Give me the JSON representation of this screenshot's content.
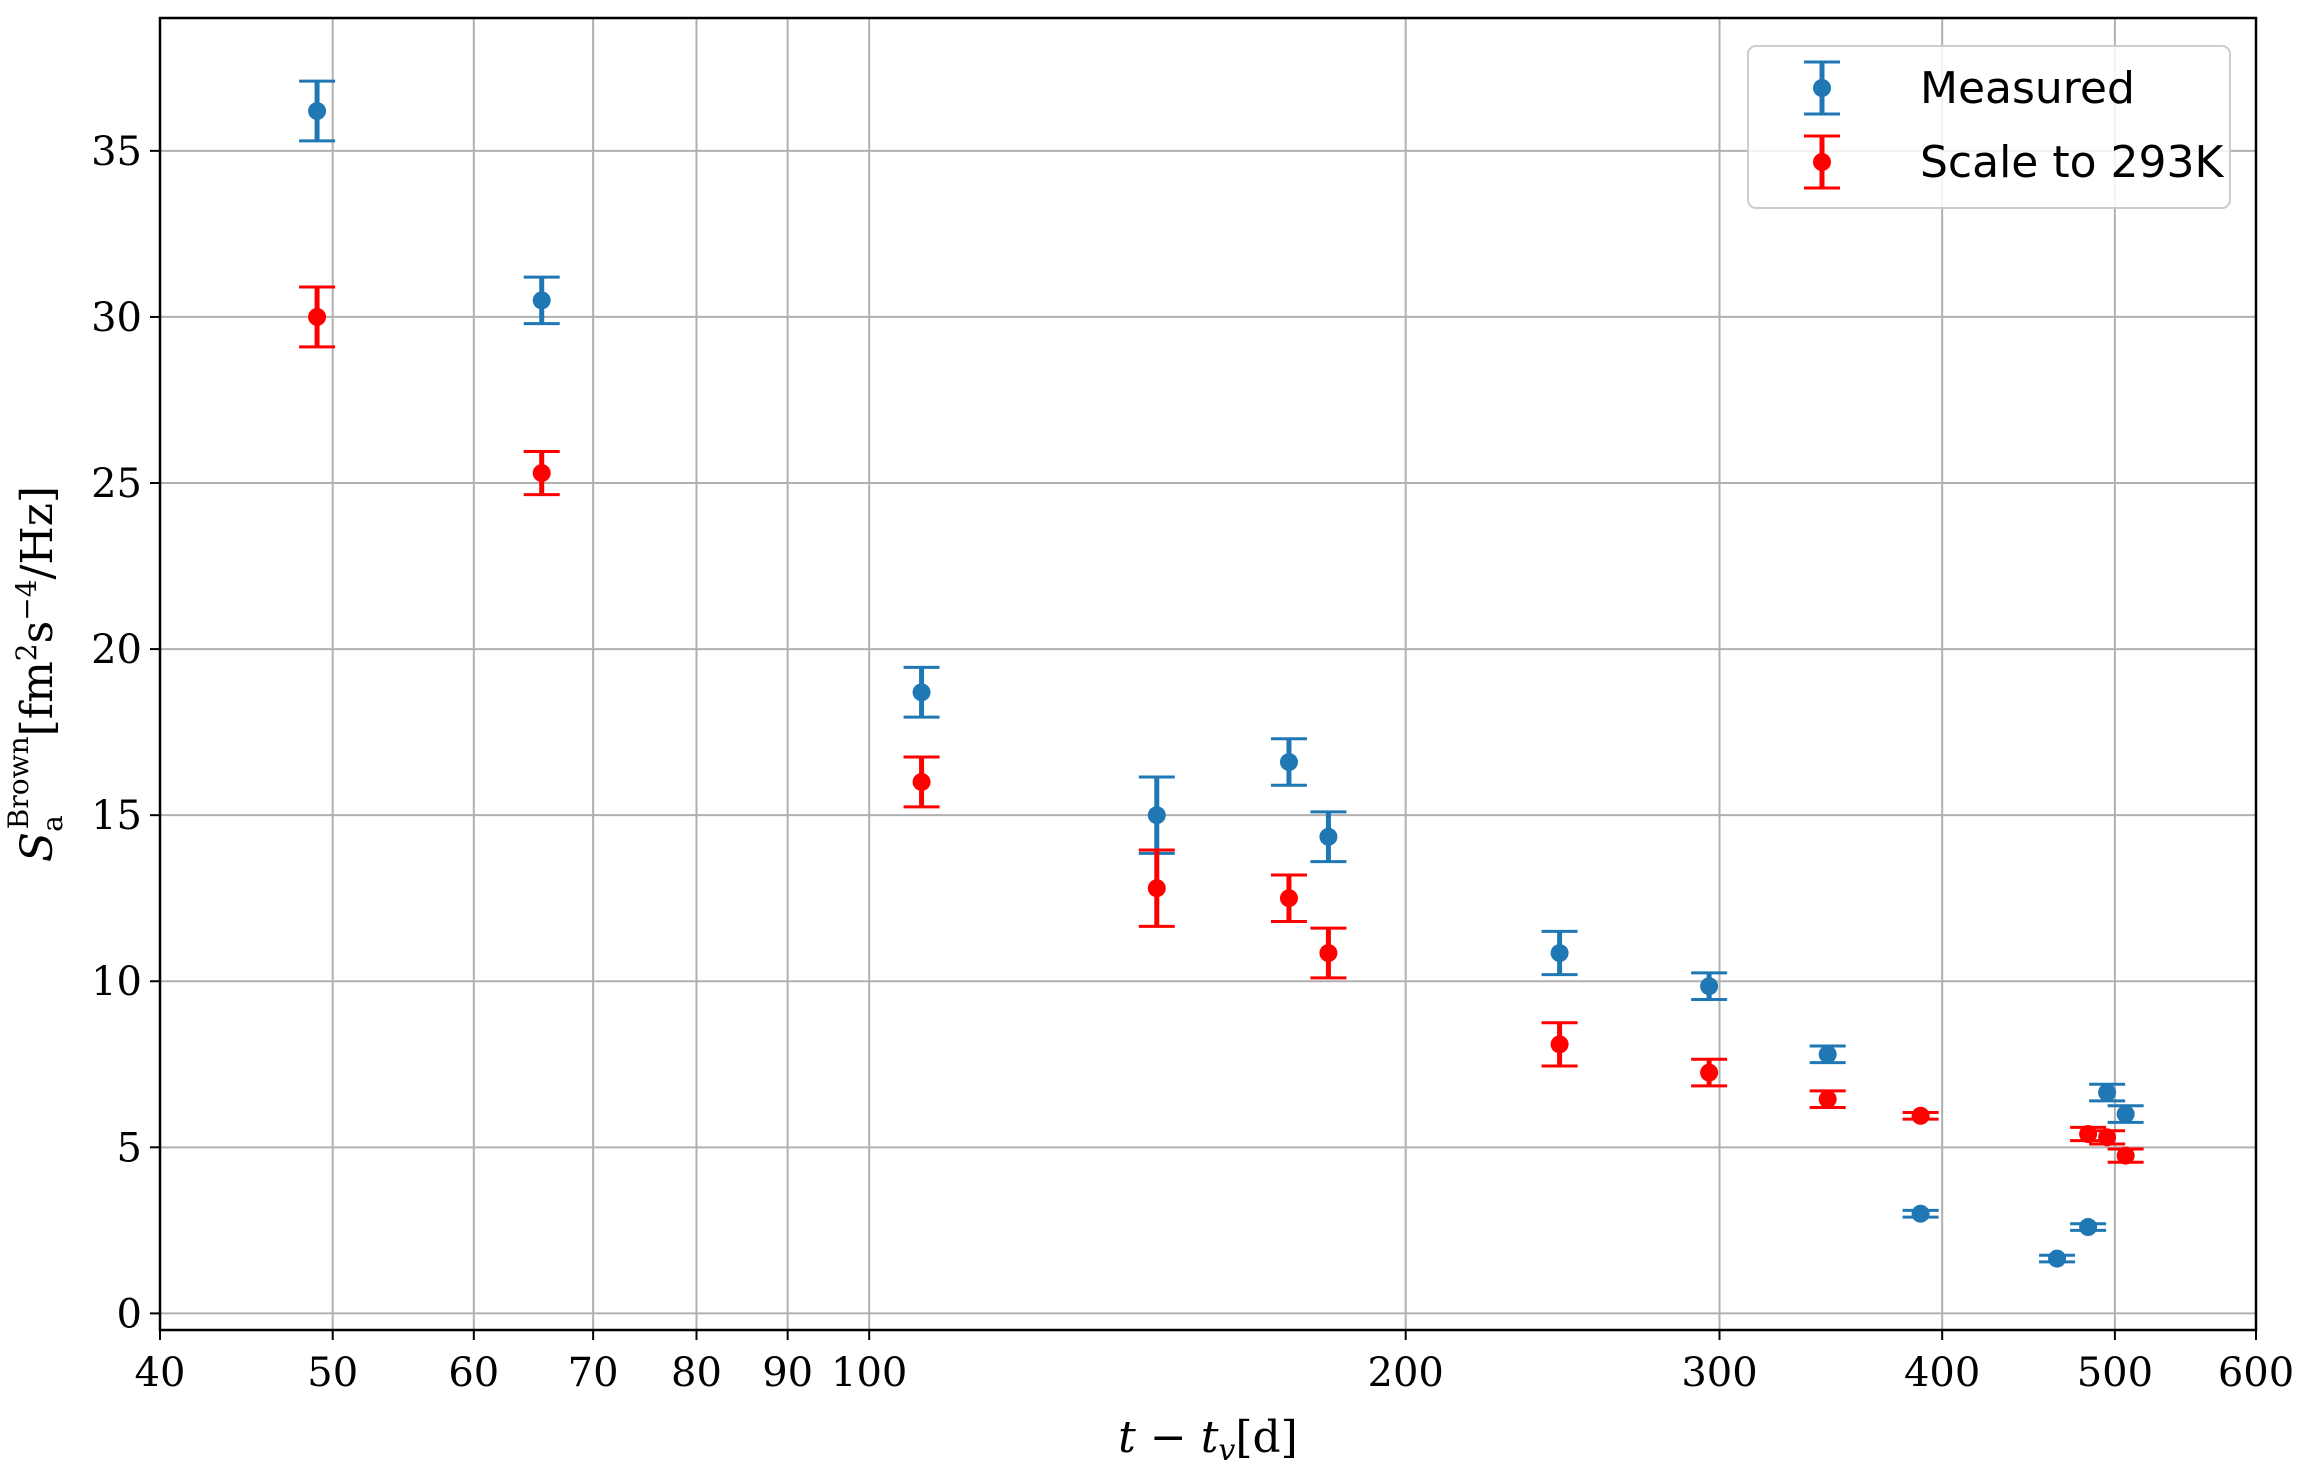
{
  "chart_data": {
    "type": "scatter",
    "x_scale": "log",
    "xlim": [
      40,
      600
    ],
    "ylim": [
      -0.5,
      39
    ],
    "grid": true,
    "legend_position": "top-right",
    "xlabel": "t − t_v[d]",
    "ylabel": "S_a^Brown [fm²s⁻⁴/Hz]",
    "xlabel_parts": {
      "main": "t − t",
      "sub": "v",
      "unit": "[d]"
    },
    "ylabel_parts": {
      "main": "S",
      "sub": "a",
      "sup": "Brown",
      "unit": "[fm",
      "unit_sup": "2",
      "unit_mid": "s",
      "unit_sup2": "−4",
      "unit_end": "/Hz]"
    },
    "x_ticks": [
      40,
      50,
      60,
      70,
      80,
      90,
      100,
      200,
      300,
      400,
      500,
      600
    ],
    "x_tick_labels": [
      "40",
      "50",
      "60",
      "70",
      "80",
      "90",
      "100",
      "200",
      "300",
      "400",
      "500",
      "600"
    ],
    "y_ticks": [
      0,
      5,
      10,
      15,
      20,
      25,
      30,
      35
    ],
    "y_tick_labels": [
      "0",
      "5",
      "10",
      "15",
      "20",
      "25",
      "30",
      "35"
    ],
    "series": [
      {
        "name": "Measured",
        "color": "#1f77b4",
        "points": [
          {
            "x": 49,
            "y": 36.2,
            "err": 0.9,
            "xerr": 0
          },
          {
            "x": 65.5,
            "y": 30.5,
            "err": 0.7,
            "xerr": 0
          },
          {
            "x": 107,
            "y": 18.7,
            "err": 0.75,
            "xerr": 0
          },
          {
            "x": 145,
            "y": 15.0,
            "err": 1.15,
            "xerr": 0
          },
          {
            "x": 172,
            "y": 16.6,
            "err": 0.7,
            "xerr": 0
          },
          {
            "x": 181,
            "y": 14.35,
            "err": 0.75,
            "xerr": 0
          },
          {
            "x": 244,
            "y": 10.85,
            "err": 0.65,
            "xerr": 0
          },
          {
            "x": 296,
            "y": 9.85,
            "err": 0.4,
            "xerr": 0
          },
          {
            "x": 345,
            "y": 7.8,
            "err": 0.25,
            "xerr": 0
          },
          {
            "x": 389,
            "y": 3.0,
            "err": 0.1,
            "xerr": 10
          },
          {
            "x": 464,
            "y": 1.65,
            "err": 0.1,
            "xerr": 10
          },
          {
            "x": 483,
            "y": 2.6,
            "err": 0.1,
            "xerr": 10
          },
          {
            "x": 495,
            "y": 6.65,
            "err": 0.25,
            "xerr": 10
          },
          {
            "x": 507,
            "y": 6.0,
            "err": 0.25,
            "xerr": 10
          }
        ]
      },
      {
        "name": "Scale to 293K",
        "color": "#ff0000",
        "points": [
          {
            "x": 49,
            "y": 30.0,
            "err": 0.9,
            "xerr": 0
          },
          {
            "x": 65.5,
            "y": 25.3,
            "err": 0.65,
            "xerr": 0
          },
          {
            "x": 107,
            "y": 16.0,
            "err": 0.75,
            "xerr": 0
          },
          {
            "x": 145,
            "y": 12.8,
            "err": 1.15,
            "xerr": 0
          },
          {
            "x": 172,
            "y": 12.5,
            "err": 0.7,
            "xerr": 0
          },
          {
            "x": 181,
            "y": 10.85,
            "err": 0.75,
            "xerr": 0
          },
          {
            "x": 244,
            "y": 8.1,
            "err": 0.65,
            "xerr": 0
          },
          {
            "x": 296,
            "y": 7.25,
            "err": 0.4,
            "xerr": 0
          },
          {
            "x": 345,
            "y": 6.45,
            "err": 0.25,
            "xerr": 0
          },
          {
            "x": 389,
            "y": 5.95,
            "err": 0.1,
            "xerr": 10
          },
          {
            "x": 483,
            "y": 5.4,
            "err": 0.2,
            "xerr": 10
          },
          {
            "x": 495,
            "y": 5.3,
            "err": 0.2,
            "xerr": 10
          },
          {
            "x": 507,
            "y": 4.75,
            "err": 0.2,
            "xerr": 10
          }
        ]
      }
    ]
  }
}
